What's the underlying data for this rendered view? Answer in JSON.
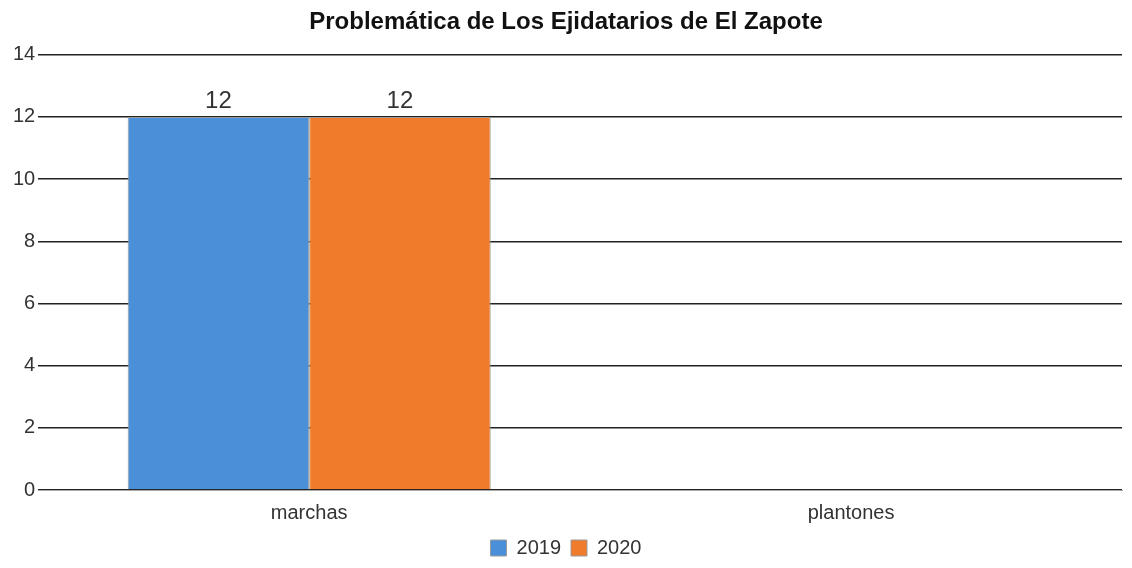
{
  "chart_data": {
    "type": "bar",
    "title": "Problemática de Los Ejidatarios de El Zapote",
    "categories": [
      "marchas",
      "plantones"
    ],
    "series": [
      {
        "name": "2019",
        "color": "#4a90d9",
        "values": [
          12,
          null
        ],
        "value_labels": [
          "12",
          null
        ]
      },
      {
        "name": "2020",
        "color": "#f07b2a",
        "values": [
          12,
          null
        ],
        "value_labels": [
          "12",
          null
        ]
      }
    ],
    "ylim": [
      0,
      14
    ],
    "yticks": [
      0,
      2,
      4,
      6,
      8,
      10,
      12,
      14
    ],
    "grid": "y",
    "legend": "bottom"
  }
}
